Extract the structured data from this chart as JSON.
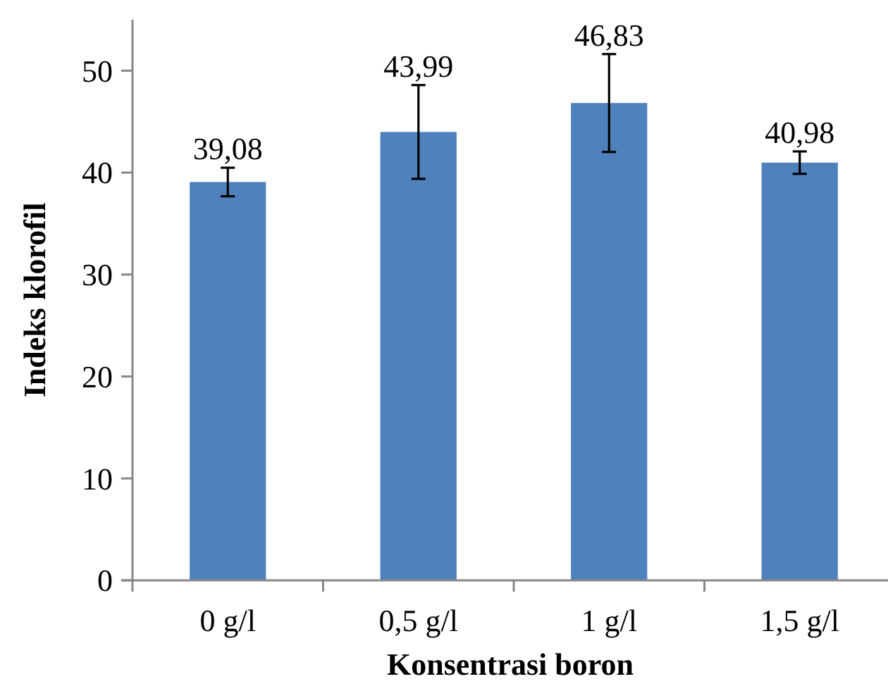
{
  "chart_data": {
    "type": "bar",
    "xlabel": "Konsentrasi boron",
    "ylabel": "Indeks klorofil",
    "categories": [
      "0 g/l",
      "0,5 g/l",
      "1 g/l",
      "1,5 g/l"
    ],
    "values": [
      39.08,
      43.99,
      46.83,
      40.98
    ],
    "errors": [
      1.4,
      4.6,
      4.8,
      1.1
    ],
    "value_labels": [
      "39,08",
      "43,99",
      "46,83",
      "40,98"
    ],
    "color": "#4f81bd",
    "ylim": [
      0,
      55
    ],
    "yticks": [
      0,
      10,
      20,
      30,
      40,
      50
    ],
    "grid": false
  }
}
